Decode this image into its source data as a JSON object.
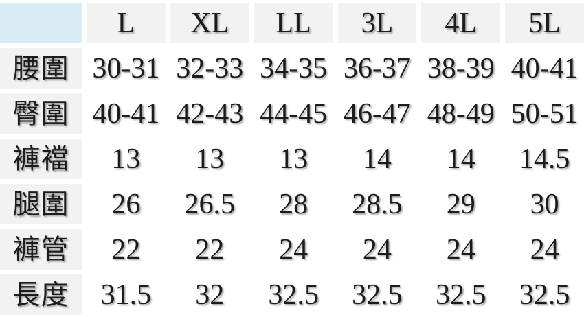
{
  "chart_data": {
    "type": "table",
    "title": "",
    "categories": [
      "L",
      "XL",
      "LL",
      "3L",
      "4L",
      "5L"
    ],
    "series": [
      {
        "name": "腰圍",
        "values": [
          "30-31",
          "32-33",
          "34-35",
          "36-37",
          "38-39",
          "40-41"
        ]
      },
      {
        "name": "臀圍",
        "values": [
          "40-41",
          "42-43",
          "44-45",
          "46-47",
          "48-49",
          "50-51"
        ]
      },
      {
        "name": "褲襠",
        "values": [
          "13",
          "13",
          "13",
          "14",
          "14",
          "14.5"
        ]
      },
      {
        "name": "腿圍",
        "values": [
          "26",
          "26.5",
          "28",
          "28.5",
          "29",
          "30"
        ]
      },
      {
        "name": "褲管",
        "values": [
          "22",
          "22",
          "24",
          "24",
          "24",
          "24"
        ]
      },
      {
        "name": "長度",
        "values": [
          "31.5",
          "32",
          "32.5",
          "32.5",
          "32.5",
          "32.5"
        ]
      }
    ],
    "corner_label": "",
    "layout": {
      "grid": "off",
      "header_row": true,
      "label_column": true
    }
  },
  "colors": {
    "corner_bg": "#d9ebf3",
    "header_bg": "#f2f2f2",
    "label_bg": "#f2f2f2",
    "value_bg": "#ffffff",
    "gutter": "#ffffff",
    "text": "#1c1c1c"
  }
}
